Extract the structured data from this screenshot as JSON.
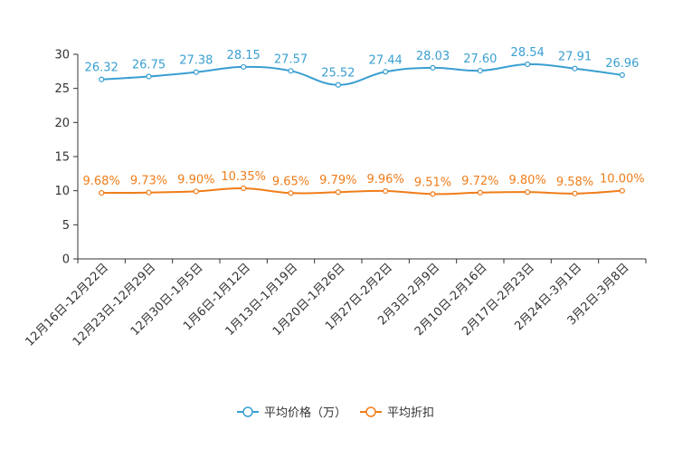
{
  "chart_data": {
    "type": "line",
    "title": "",
    "xlabel": "",
    "ylabel": "",
    "ylim": [
      0,
      30
    ],
    "yticks": [
      0,
      5,
      10,
      15,
      20,
      25,
      30
    ],
    "grid": false,
    "legend_position": "bottom-center",
    "categories": [
      "12月16日-12月22日",
      "12月23日-12月29日",
      "12月30日-1月5日",
      "1月6日-1月12日",
      "1月13日-1月19日",
      "1月20日-1月26日",
      "1月27日-2月2日",
      "2月3日-2月9日",
      "2月10日-2月16日",
      "2月17日-2月23日",
      "2月24日-3月1日",
      "3月2日-3月8日"
    ],
    "series": [
      {
        "name": "平均价格（万）",
        "color": "#3a9fd1",
        "values": [
          26.32,
          26.75,
          27.38,
          28.15,
          27.57,
          25.52,
          27.44,
          28.03,
          27.6,
          28.54,
          27.91,
          26.96
        ],
        "labels": [
          "26.32",
          "26.75",
          "27.38",
          "28.15",
          "27.57",
          "25.52",
          "27.44",
          "28.03",
          "27.60",
          "28.54",
          "27.91",
          "26.96"
        ]
      },
      {
        "name": "平均折扣",
        "color": "#f07d1a",
        "values": [
          9.68,
          9.73,
          9.9,
          10.35,
          9.65,
          9.79,
          9.96,
          9.51,
          9.72,
          9.8,
          9.58,
          10.0
        ],
        "labels": [
          "9.68%",
          "9.73%",
          "9.90%",
          "10.35%",
          "9.65%",
          "9.79%",
          "9.96%",
          "9.51%",
          "9.72%",
          "9.80%",
          "9.58%",
          "10.00%"
        ]
      }
    ]
  }
}
